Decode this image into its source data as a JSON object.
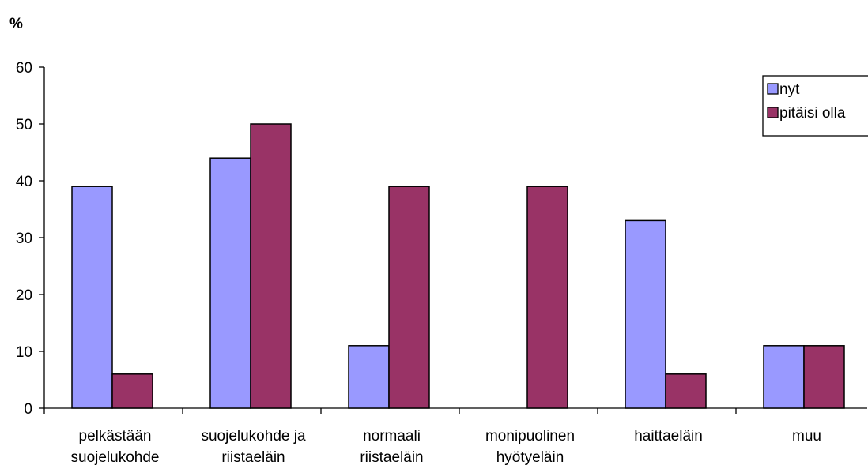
{
  "chart_data": {
    "type": "bar",
    "ylabel": "%",
    "ylim": [
      0,
      60
    ],
    "yticks": [
      0,
      10,
      20,
      30,
      40,
      50,
      60
    ],
    "grid": false,
    "legend_position": "top-right",
    "categories": [
      [
        "pelkästään",
        "suojelukohde"
      ],
      [
        "suojelukohde ja",
        "riistaeläin"
      ],
      [
        "normaali",
        "riistaeläin"
      ],
      [
        "monipuolinen",
        "hyötyeläin"
      ],
      [
        "haittaeläin"
      ],
      [
        "muu"
      ]
    ],
    "series": [
      {
        "name": "nyt",
        "color": "#9999ff",
        "values": [
          39,
          44,
          11,
          0,
          33,
          11
        ]
      },
      {
        "name": "pitäisi olla",
        "color": "#993366",
        "values": [
          6,
          50,
          39,
          39,
          6,
          11
        ]
      }
    ]
  }
}
